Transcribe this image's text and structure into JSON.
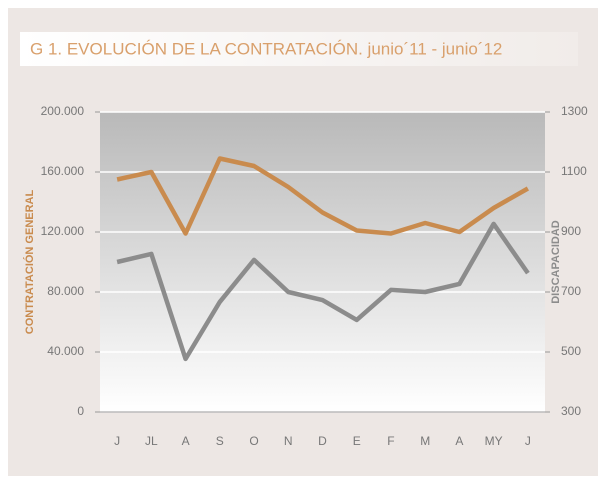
{
  "chart_data": {
    "type": "line",
    "title": "G 1. EVOLUCIÓN DE LA CONTRATACIÓN.  junio´11 - junio´12",
    "y_label": "CONTRATACIÓN GENERAL",
    "y2_label": "DISCAPACIDAD",
    "categories": [
      "J",
      "JL",
      "A",
      "S",
      "O",
      "N",
      "D",
      "E",
      "F",
      "M",
      "A",
      "MY",
      "J"
    ],
    "series": [
      {
        "color": "#c98b4e",
        "values": [
          155000,
          160000,
          119000,
          169000,
          164000,
          150000,
          133000,
          121000,
          119000,
          126000,
          120000,
          136000,
          149000
        ]
      },
      {
        "color": "#8c8c8c",
        "axis": "y2",
        "values": [
          800,
          827,
          477,
          667,
          807,
          700,
          673,
          607,
          707,
          700,
          727,
          927,
          763
        ]
      }
    ],
    "ylim": [
      0,
      200000
    ],
    "yticks": [
      0,
      {
        "value": 40000,
        "label": "40.000"
      },
      {
        "value": 80000,
        "label": "80.000"
      },
      {
        "value": 120000,
        "label": "120.000"
      },
      {
        "value": 160000,
        "label": "160.000"
      },
      {
        "value": 200000,
        "label": "200.000"
      }
    ],
    "y2lim": [
      300,
      1300
    ],
    "y2ticks": [
      300,
      500,
      700,
      900,
      1100,
      1300
    ],
    "grid": true
  }
}
